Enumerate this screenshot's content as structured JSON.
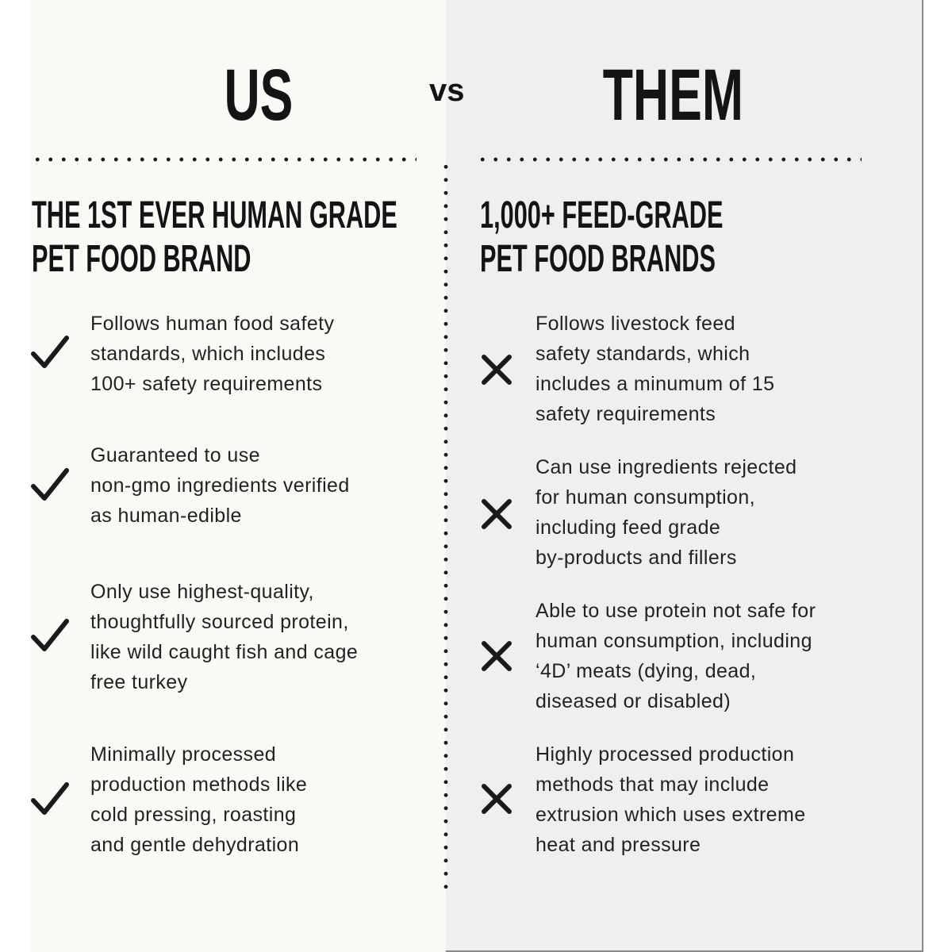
{
  "header": {
    "us": "US",
    "vs": "vs",
    "them": "THEM"
  },
  "us": {
    "heading_line1": "THE 1ST EVER HUMAN GRADE",
    "heading_line2": "PET FOOD BRAND",
    "icon": "check-icon",
    "items": [
      "Follows human food safety\nstandards, which includes\n100+ safety requirements",
      "Guaranteed to use\nnon-gmo ingredients verified\nas human-edible",
      "Only use highest-quality,\nthoughtfully sourced protein,\nlike wild caught fish and cage\nfree turkey",
      "Minimally processed\nproduction methods like\ncold pressing, roasting\nand gentle dehydration"
    ]
  },
  "them": {
    "heading_line1": "1,000+ FEED-GRADE",
    "heading_line2": "PET FOOD BRANDS",
    "icon": "x-icon",
    "items": [
      "Follows livestock feed\nsafety standards, which\nincludes a minumum of 15\nsafety requirements",
      "Can use ingredients rejected\nfor human consumption,\nincluding feed grade\nby-products and fillers",
      "Able to use protein not safe for\nhuman consumption, including\n‘4D’ meats (dying, dead,\ndiseased or disabled)",
      "Highly processed production\nmethods that may include\nextrusion which uses extreme\nheat and pressure"
    ]
  },
  "colors": {
    "left_bg": "#fbf9f6",
    "right_bg": "#efefef",
    "text": "#1a1a1a"
  }
}
